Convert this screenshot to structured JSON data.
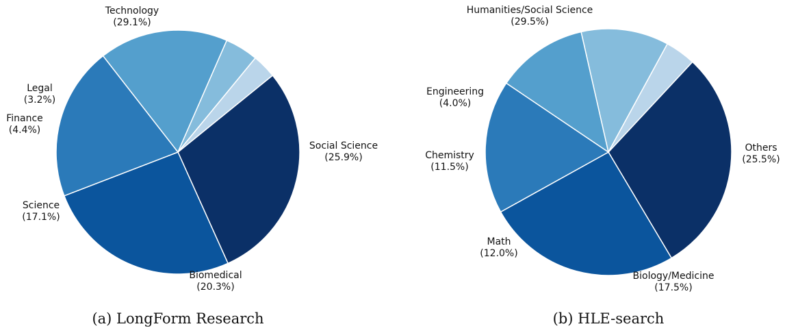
{
  "chart_data": [
    {
      "type": "pie",
      "caption": "(a) LongForm Research",
      "slices": [
        {
          "label": "Technology",
          "pct_text": "(29.1%)",
          "value": 29.1,
          "color": "#0b3067"
        },
        {
          "label": "Social Science",
          "pct_text": "(25.9%)",
          "value": 25.9,
          "color": "#0b559d"
        },
        {
          "label": "Biomedical",
          "pct_text": "(20.3%)",
          "value": 20.3,
          "color": "#2b7ab9"
        },
        {
          "label": "Science",
          "pct_text": "(17.1%)",
          "value": 17.1,
          "color": "#549fcd"
        },
        {
          "label": "Finance",
          "pct_text": "(4.4%)",
          "value": 4.4,
          "color": "#85bcdc"
        },
        {
          "label": "Legal",
          "pct_text": "(3.2%)",
          "value": 3.2,
          "color": "#bad5ea"
        }
      ]
    },
    {
      "type": "pie",
      "caption": "(b) HLE-search",
      "slices": [
        {
          "label": "Humanities/Social Science",
          "pct_text": "(29.5%)",
          "value": 29.5,
          "color": "#0b3067"
        },
        {
          "label": "Others",
          "pct_text": "(25.5%)",
          "value": 25.5,
          "color": "#0b559d"
        },
        {
          "label": "Biology/Medicine",
          "pct_text": "(17.5%)",
          "value": 17.5,
          "color": "#2b7ab9"
        },
        {
          "label": "Math",
          "pct_text": "(12.0%)",
          "value": 12.0,
          "color": "#549fcd"
        },
        {
          "label": "Chemistry",
          "pct_text": "(11.5%)",
          "value": 11.5,
          "color": "#85bcdc"
        },
        {
          "label": "Engineering",
          "pct_text": "(4.0%)",
          "value": 4.0,
          "color": "#bad5ea"
        }
      ]
    }
  ]
}
